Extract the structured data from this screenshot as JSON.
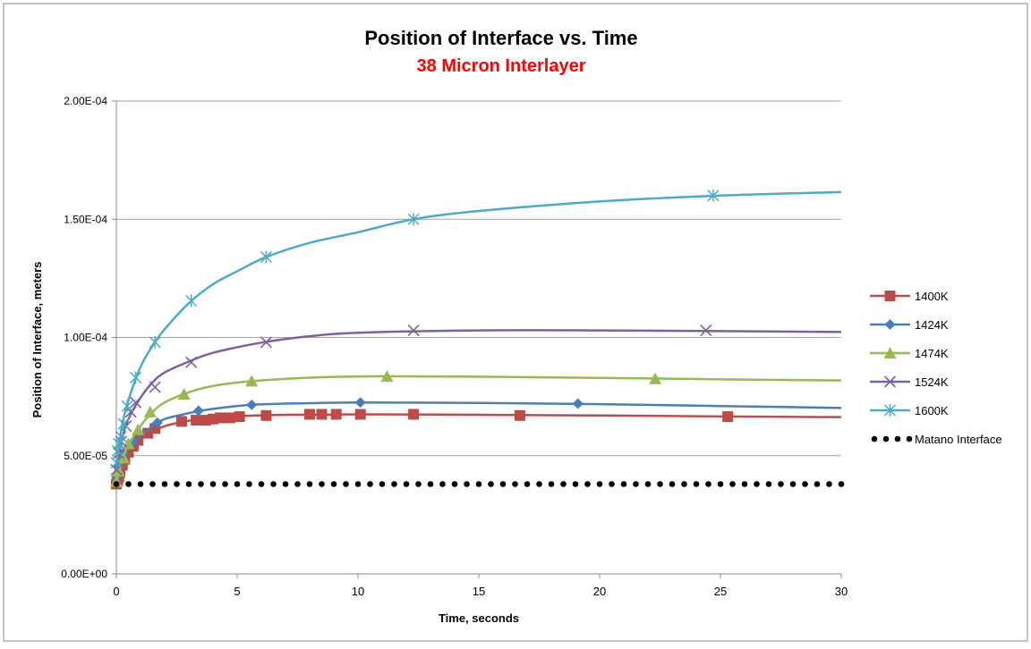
{
  "chart_data": {
    "type": "scatter",
    "title": "Position of Interface vs. Time",
    "subtitle": "38 Micron Interlayer",
    "xlabel": "Time, seconds",
    "ylabel": "Position of Interface, meters",
    "xlim": [
      0,
      30
    ],
    "ylim": [
      0,
      0.0002
    ],
    "x_ticks": [
      0,
      5,
      10,
      15,
      20,
      25,
      30
    ],
    "x_tick_labels": [
      "0",
      "5",
      "10",
      "15",
      "20",
      "25",
      "30"
    ],
    "y_ticks": [
      0,
      5e-05,
      0.0001,
      0.00015,
      0.0002
    ],
    "y_tick_labels": [
      "0.00E+00",
      "5.00E-05",
      "1.00E-04",
      "1.50E-04",
      "2.00E-04"
    ],
    "grid": "horizontal",
    "legend_position": "right",
    "colors": {
      "title": "#000000",
      "subtitle": "#ff0000"
    },
    "series": [
      {
        "name": "1400K",
        "color": "#be4b48",
        "marker": "square",
        "points": [
          [
            0.0,
            3.8e-05
          ],
          [
            0.05,
            3.95e-05
          ],
          [
            0.1,
            4.1e-05
          ],
          [
            0.15,
            4.3e-05
          ],
          [
            0.25,
            4.6e-05
          ],
          [
            0.35,
            4.85e-05
          ],
          [
            0.5,
            5.15e-05
          ],
          [
            0.7,
            5.4e-05
          ],
          [
            0.9,
            5.65e-05
          ],
          [
            1.3,
            5.95e-05
          ],
          [
            1.6,
            6.15e-05
          ],
          [
            2.7,
            6.45e-05
          ],
          [
            3.3,
            6.5e-05
          ],
          [
            3.7,
            6.5e-05
          ],
          [
            4.0,
            6.55e-05
          ],
          [
            4.3,
            6.6e-05
          ],
          [
            4.7,
            6.6e-05
          ],
          [
            5.1,
            6.65e-05
          ],
          [
            6.2,
            6.7e-05
          ],
          [
            8.0,
            6.75e-05
          ],
          [
            8.5,
            6.75e-05
          ],
          [
            9.1,
            6.75e-05
          ],
          [
            10.1,
            6.75e-05
          ],
          [
            12.3,
            6.75e-05
          ],
          [
            16.7,
            6.7e-05
          ],
          [
            25.3,
            6.65e-05
          ]
        ],
        "curve": [
          [
            0,
            3.8e-05
          ],
          [
            0.25,
            4.5e-05
          ],
          [
            0.5,
            5e-05
          ],
          [
            1,
            5.67e-05
          ],
          [
            1.5,
            6e-05
          ],
          [
            2,
            6.25e-05
          ],
          [
            3,
            6.48e-05
          ],
          [
            4,
            6.6e-05
          ],
          [
            5,
            6.67e-05
          ],
          [
            7,
            6.73e-05
          ],
          [
            10,
            6.75e-05
          ],
          [
            15,
            6.73e-05
          ],
          [
            20,
            6.7e-05
          ],
          [
            25,
            6.66e-05
          ],
          [
            30,
            6.63e-05
          ]
        ]
      },
      {
        "name": "1424K",
        "color": "#4a7ebb",
        "marker": "diamond",
        "points": [
          [
            0.0,
            4.1e-05
          ],
          [
            0.1,
            4.55e-05
          ],
          [
            0.3,
            5.1e-05
          ],
          [
            0.7,
            5.6e-05
          ],
          [
            1.7,
            6.4e-05
          ],
          [
            3.4,
            6.9e-05
          ],
          [
            5.6,
            7.15e-05
          ],
          [
            10.1,
            7.25e-05
          ],
          [
            19.1,
            7.2e-05
          ]
        ],
        "curve": [
          [
            0,
            4.1e-05
          ],
          [
            0.25,
            4.9e-05
          ],
          [
            0.5,
            5.35e-05
          ],
          [
            1,
            5.85e-05
          ],
          [
            1.5,
            6.25e-05
          ],
          [
            2,
            6.55e-05
          ],
          [
            3,
            6.8e-05
          ],
          [
            4,
            6.98e-05
          ],
          [
            5.6,
            7.15e-05
          ],
          [
            8,
            7.22e-05
          ],
          [
            10,
            7.25e-05
          ],
          [
            15,
            7.23e-05
          ],
          [
            20,
            7.18e-05
          ],
          [
            25,
            7.1e-05
          ],
          [
            30,
            7.02e-05
          ]
        ]
      },
      {
        "name": "1474K",
        "color": "#98b954",
        "marker": "triangle",
        "points": [
          [
            0.0,
            3.9e-05
          ],
          [
            0.1,
            4.35e-05
          ],
          [
            0.3,
            4.9e-05
          ],
          [
            0.5,
            5.5e-05
          ],
          [
            0.9,
            6.1e-05
          ],
          [
            1.4,
            6.85e-05
          ],
          [
            2.8,
            7.6e-05
          ],
          [
            5.6,
            8.15e-05
          ],
          [
            11.2,
            8.35e-05
          ],
          [
            22.3,
            8.25e-05
          ]
        ],
        "curve": [
          [
            0,
            3.9e-05
          ],
          [
            0.25,
            4.85e-05
          ],
          [
            0.5,
            5.45e-05
          ],
          [
            1,
            6.25e-05
          ],
          [
            1.5,
            6.85e-05
          ],
          [
            2,
            7.25e-05
          ],
          [
            3,
            7.68e-05
          ],
          [
            4,
            7.95e-05
          ],
          [
            5.6,
            8.15e-05
          ],
          [
            8,
            8.3e-05
          ],
          [
            11,
            8.36e-05
          ],
          [
            15,
            8.34e-05
          ],
          [
            20,
            8.29e-05
          ],
          [
            25,
            8.23e-05
          ],
          [
            30,
            8.18e-05
          ]
        ]
      },
      {
        "name": "1524K",
        "color": "#7d60a0",
        "marker": "x",
        "points": [
          [
            0.0,
            4.4e-05
          ],
          [
            0.1,
            5.1e-05
          ],
          [
            0.2,
            5.6e-05
          ],
          [
            0.4,
            6.25e-05
          ],
          [
            0.6,
            6.85e-05
          ],
          [
            0.8,
            7.25e-05
          ],
          [
            1.6,
            7.9e-05
          ],
          [
            3.1,
            8.95e-05
          ],
          [
            6.2,
            9.8e-05
          ],
          [
            12.3,
            0.000103
          ],
          [
            24.4,
            0.000103
          ]
        ],
        "curve": [
          [
            0,
            4.4e-05
          ],
          [
            0.25,
            5.75e-05
          ],
          [
            0.5,
            6.55e-05
          ],
          [
            1,
            7.45e-05
          ],
          [
            1.5,
            8.1e-05
          ],
          [
            2,
            8.52e-05
          ],
          [
            3,
            8.98e-05
          ],
          [
            4,
            9.35e-05
          ],
          [
            6,
            9.78e-05
          ],
          [
            8,
            0.0001005
          ],
          [
            10,
            0.000102
          ],
          [
            15,
            0.000103
          ],
          [
            20,
            0.000103
          ],
          [
            25,
            0.0001027
          ],
          [
            30,
            0.0001023
          ]
        ]
      },
      {
        "name": "1600K",
        "color": "#4aacc5",
        "marker": "star",
        "points": [
          [
            0.0,
            4.7e-05
          ],
          [
            0.05,
            5.2e-05
          ],
          [
            0.1,
            5.5e-05
          ],
          [
            0.2,
            5.8e-05
          ],
          [
            0.3,
            6.35e-05
          ],
          [
            0.45,
            7.1e-05
          ],
          [
            0.8,
            8.3e-05
          ],
          [
            1.6,
            9.8e-05
          ],
          [
            3.1,
            0.0001155
          ],
          [
            6.2,
            0.000134
          ],
          [
            12.3,
            0.00015
          ],
          [
            24.7,
            0.00016
          ]
        ],
        "curve": [
          [
            0,
            4.7e-05
          ],
          [
            0.25,
            6.35e-05
          ],
          [
            0.5,
            7.35e-05
          ],
          [
            1,
            8.75e-05
          ],
          [
            1.5,
            9.65e-05
          ],
          [
            2,
            0.0001035
          ],
          [
            3,
            0.0001145
          ],
          [
            4,
            0.0001225
          ],
          [
            5,
            0.000128
          ],
          [
            6.2,
            0.000134
          ],
          [
            8,
            0.00014
          ],
          [
            10,
            0.0001445
          ],
          [
            12.3,
            0.00015
          ],
          [
            15,
            0.0001535
          ],
          [
            20,
            0.0001575
          ],
          [
            25,
            0.00016
          ],
          [
            30,
            0.0001615
          ]
        ]
      },
      {
        "name": "Matano Interface",
        "color": "#000000",
        "marker": "dot",
        "line": "dotted",
        "y": 3.8e-05,
        "x_start": 0,
        "x_end": 30
      }
    ]
  }
}
